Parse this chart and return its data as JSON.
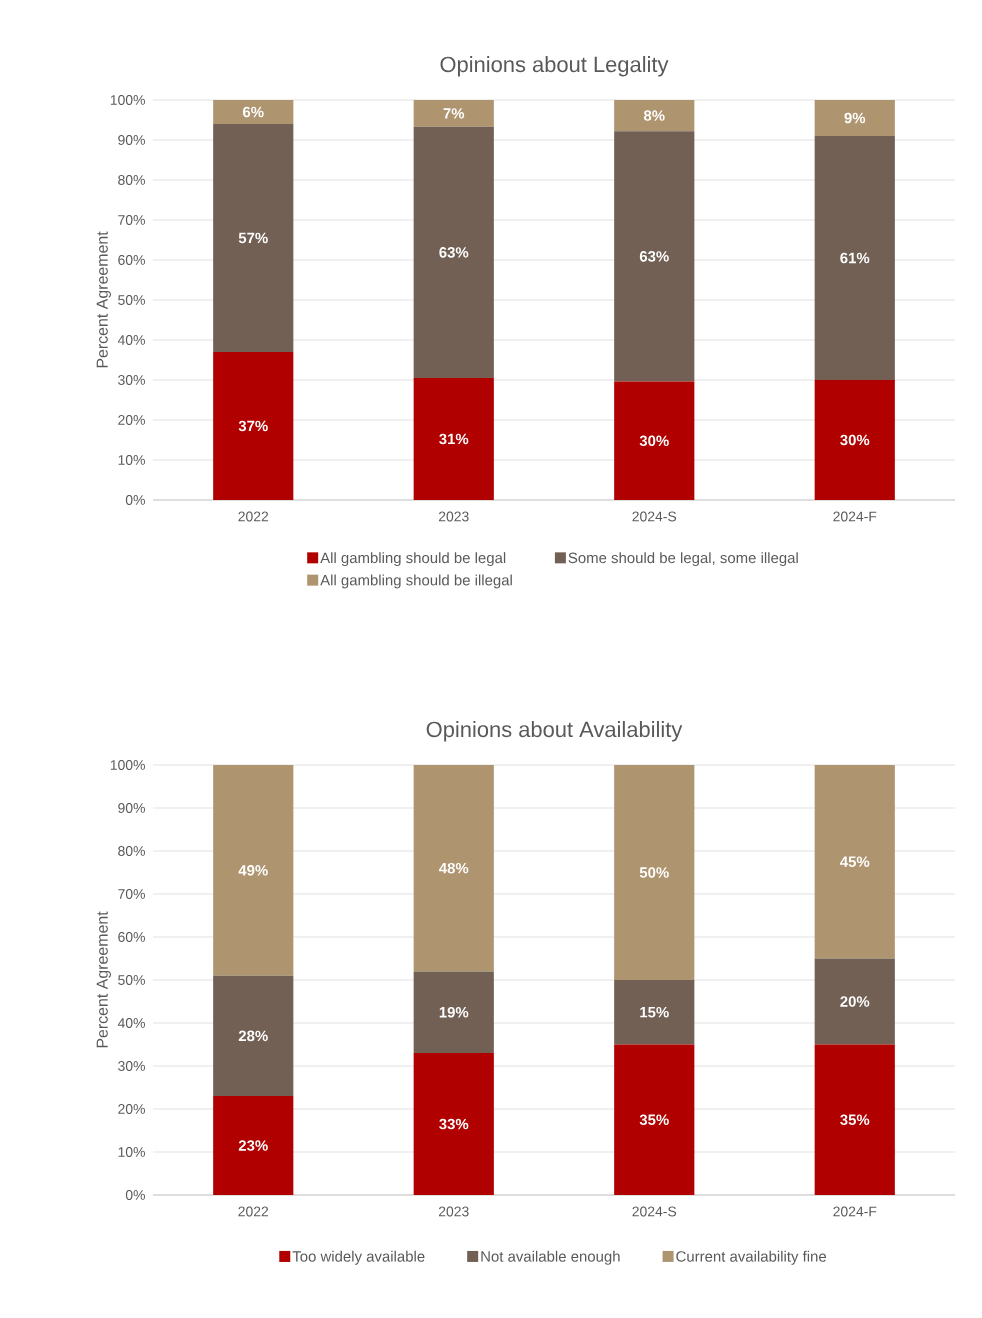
{
  "chart_data": [
    {
      "type": "bar",
      "stacked": true,
      "title": "Opinions about Legality",
      "ylabel": "Percent Agreement",
      "categories": [
        "2022",
        "2023",
        "2024-S",
        "2024-F"
      ],
      "series": [
        {
          "name": "All gambling should be legal",
          "color": "#b00000",
          "values": [
            37,
            30.5,
            29.6,
            30
          ],
          "value_labels": [
            "37%",
            "31%",
            "30%",
            "30%"
          ]
        },
        {
          "name": "Some should be legal, some illegal",
          "color": "#726055",
          "values": [
            57,
            62.8,
            62.6,
            61
          ],
          "value_labels": [
            "57%",
            "63%",
            "63%",
            "61%"
          ]
        },
        {
          "name": "All gambling should be illegal",
          "color": "#ae9570",
          "values": [
            6,
            6.7,
            7.8,
            9
          ],
          "value_labels": [
            "6%",
            "7%",
            "8%",
            "9%"
          ]
        }
      ],
      "ylim": [
        0,
        100
      ],
      "yticks": [
        {
          "value": 0,
          "label": "0%"
        },
        {
          "value": 10,
          "label": "10%"
        },
        {
          "value": 20,
          "label": "20%"
        },
        {
          "value": 30,
          "label": "30%"
        },
        {
          "value": 40,
          "label": "40%"
        },
        {
          "value": 50,
          "label": "50%"
        },
        {
          "value": 60,
          "label": "60%"
        },
        {
          "value": 70,
          "label": "70%"
        },
        {
          "value": 80,
          "label": "80%"
        },
        {
          "value": 90,
          "label": "90%"
        },
        {
          "value": 100,
          "label": "100%"
        }
      ],
      "grid": "y",
      "legend": "bottom"
    },
    {
      "type": "bar",
      "stacked": true,
      "title": "Opinions about Availability",
      "ylabel": "Percent Agreement",
      "categories": [
        "2022",
        "2023",
        "2024-S",
        "2024-F"
      ],
      "series": [
        {
          "name": "Too widely available",
          "color": "#b00000",
          "values": [
            23,
            33,
            35,
            35
          ],
          "value_labels": [
            "23%",
            "33%",
            "35%",
            "35%"
          ]
        },
        {
          "name": "Not available enough",
          "color": "#726055",
          "values": [
            28,
            19,
            15,
            20
          ],
          "value_labels": [
            "28%",
            "19%",
            "15%",
            "20%"
          ]
        },
        {
          "name": "Current availability fine",
          "color": "#ae9570",
          "values": [
            49,
            48,
            50,
            45
          ],
          "value_labels": [
            "49%",
            "48%",
            "50%",
            "45%"
          ]
        }
      ],
      "ylim": [
        0,
        100
      ],
      "yticks": [
        {
          "value": 0,
          "label": "0%"
        },
        {
          "value": 10,
          "label": "10%"
        },
        {
          "value": 20,
          "label": "20%"
        },
        {
          "value": 30,
          "label": "30%"
        },
        {
          "value": 40,
          "label": "40%"
        },
        {
          "value": 50,
          "label": "50%"
        },
        {
          "value": 60,
          "label": "60%"
        },
        {
          "value": 70,
          "label": "70%"
        },
        {
          "value": 80,
          "label": "80%"
        },
        {
          "value": 90,
          "label": "90%"
        },
        {
          "value": 100,
          "label": "100%"
        }
      ],
      "grid": "y",
      "legend": "bottom"
    }
  ]
}
